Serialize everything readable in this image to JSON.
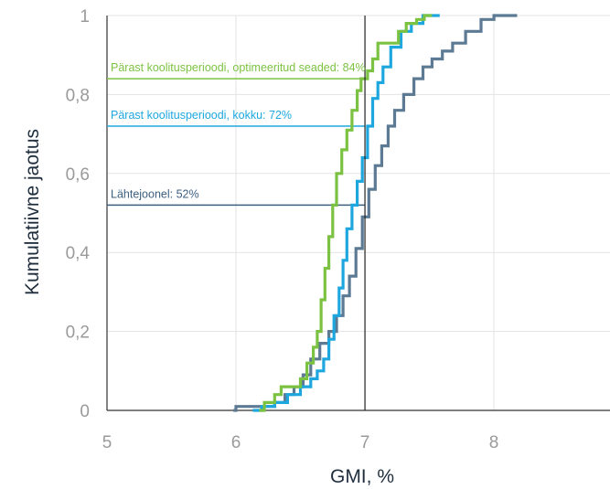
{
  "chart_data": {
    "type": "line",
    "xlabel": "GMI, %",
    "ylabel": "Kumulatiivne jaotus",
    "xlim": [
      5,
      8.9
    ],
    "ylim": [
      0,
      1
    ],
    "x_ticks": [
      "5",
      "6",
      "7",
      "8"
    ],
    "x_tick_values": [
      5,
      6,
      7,
      8
    ],
    "y_ticks": [
      "0",
      "0,2",
      "0,4",
      "0,6",
      "0,8",
      "1"
    ],
    "y_tick_values": [
      0,
      0.2,
      0.4,
      0.6,
      0.8,
      1
    ],
    "grid": true,
    "reference_line_x": 7,
    "series": [
      {
        "color": "#5c7a94",
        "points": [
          [
            5.98,
            0
          ],
          [
            6.0,
            0.01
          ],
          [
            6.1,
            0.01
          ],
          [
            6.2,
            0.01
          ],
          [
            6.3,
            0.02
          ],
          [
            6.38,
            0.04
          ],
          [
            6.45,
            0.06
          ],
          [
            6.52,
            0.09
          ],
          [
            6.58,
            0.13
          ],
          [
            6.65,
            0.17
          ],
          [
            6.72,
            0.2
          ],
          [
            6.78,
            0.24
          ],
          [
            6.83,
            0.29
          ],
          [
            6.88,
            0.34
          ],
          [
            6.93,
            0.41
          ],
          [
            6.98,
            0.49
          ],
          [
            7.03,
            0.56
          ],
          [
            7.08,
            0.62
          ],
          [
            7.13,
            0.67
          ],
          [
            7.18,
            0.72
          ],
          [
            7.23,
            0.76
          ],
          [
            7.3,
            0.8
          ],
          [
            7.38,
            0.84
          ],
          [
            7.45,
            0.87
          ],
          [
            7.52,
            0.89
          ],
          [
            7.6,
            0.91
          ],
          [
            7.68,
            0.93
          ],
          [
            7.78,
            0.96
          ],
          [
            7.9,
            0.99
          ],
          [
            8.0,
            1.0
          ],
          [
            8.18,
            1.0
          ]
        ]
      },
      {
        "color": "#1ea7df",
        "points": [
          [
            6.13,
            0
          ],
          [
            6.2,
            0.01
          ],
          [
            6.3,
            0.02
          ],
          [
            6.4,
            0.04
          ],
          [
            6.5,
            0.06
          ],
          [
            6.58,
            0.08
          ],
          [
            6.63,
            0.1
          ],
          [
            6.68,
            0.13
          ],
          [
            6.72,
            0.18
          ],
          [
            6.76,
            0.24
          ],
          [
            6.8,
            0.31
          ],
          [
            6.83,
            0.38
          ],
          [
            6.86,
            0.46
          ],
          [
            6.9,
            0.52
          ],
          [
            6.94,
            0.58
          ],
          [
            6.98,
            0.64
          ],
          [
            7.02,
            0.72
          ],
          [
            7.06,
            0.79
          ],
          [
            7.1,
            0.83
          ],
          [
            7.14,
            0.87
          ],
          [
            7.2,
            0.92
          ],
          [
            7.28,
            0.96
          ],
          [
            7.36,
            0.98
          ],
          [
            7.45,
            1.0
          ],
          [
            7.58,
            1.0
          ]
        ]
      },
      {
        "color": "#7cc242",
        "points": [
          [
            6.18,
            0
          ],
          [
            6.22,
            0.02
          ],
          [
            6.3,
            0.04
          ],
          [
            6.35,
            0.06
          ],
          [
            6.45,
            0.06
          ],
          [
            6.5,
            0.08
          ],
          [
            6.55,
            0.12
          ],
          [
            6.6,
            0.16
          ],
          [
            6.63,
            0.2
          ],
          [
            6.66,
            0.28
          ],
          [
            6.69,
            0.36
          ],
          [
            6.72,
            0.44
          ],
          [
            6.75,
            0.52
          ],
          [
            6.78,
            0.6
          ],
          [
            6.82,
            0.66
          ],
          [
            6.86,
            0.71
          ],
          [
            6.9,
            0.76
          ],
          [
            6.94,
            0.81
          ],
          [
            6.97,
            0.84
          ],
          [
            7.02,
            0.86
          ],
          [
            7.06,
            0.89
          ],
          [
            7.1,
            0.93
          ],
          [
            7.2,
            0.93
          ],
          [
            7.26,
            0.96
          ],
          [
            7.32,
            0.98
          ],
          [
            7.4,
            0.99
          ],
          [
            7.46,
            1.0
          ],
          [
            7.52,
            1.0
          ]
        ]
      }
    ],
    "annotations": [
      {
        "text": "Pärast koolitusperioodi, optimeeritud seaded: 84%",
        "y": 0.84,
        "color": "#7cc242"
      },
      {
        "text": "Pärast koolitusperioodi, kokku: 72%",
        "y": 0.72,
        "color": "#1ea7df"
      },
      {
        "text": "Lähtejoonel: 52%",
        "y": 0.52,
        "color": "#3d5f80"
      }
    ]
  }
}
